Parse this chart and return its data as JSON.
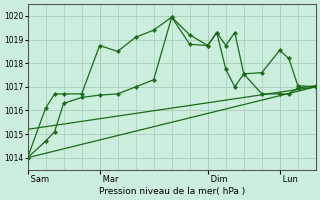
{
  "background_color": "#cceedd",
  "grid_color": "#aaccbb",
  "line_color": "#1a6b1a",
  "xlabel": "Pression niveau de la mer( hPa )",
  "ylim": [
    1013.5,
    1020.5
  ],
  "xlim": [
    0,
    96
  ],
  "yticks": [
    1014,
    1015,
    1016,
    1017,
    1018,
    1019,
    1020
  ],
  "xtick_labels": [
    " Sam",
    " Mar",
    " Dim",
    " Lun"
  ],
  "xtick_positions": [
    0,
    24,
    60,
    84
  ],
  "series1_x": [
    0,
    6,
    9,
    12,
    18,
    24,
    30,
    36,
    42,
    48,
    54,
    60,
    63,
    66,
    69,
    72,
    78,
    84,
    87,
    90,
    96
  ],
  "series1_y": [
    1014.0,
    1016.1,
    1016.7,
    1016.7,
    1016.7,
    1018.75,
    1018.5,
    1019.1,
    1019.4,
    1019.95,
    1018.8,
    1018.75,
    1019.3,
    1018.75,
    1019.3,
    1017.55,
    1017.6,
    1018.55,
    1018.2,
    1017.05,
    1017.0
  ],
  "series2_x": [
    0,
    6,
    9,
    12,
    18,
    24,
    30,
    36,
    42,
    48,
    54,
    60,
    63,
    66,
    69,
    72,
    78,
    84,
    87,
    90,
    96
  ],
  "series2_y": [
    1014.0,
    1014.7,
    1015.1,
    1016.3,
    1016.55,
    1016.65,
    1016.7,
    1017.0,
    1017.3,
    1019.95,
    1019.2,
    1018.75,
    1019.3,
    1017.75,
    1017.0,
    1017.55,
    1016.7,
    1016.7,
    1016.7,
    1016.95,
    1017.05
  ],
  "series3_x": [
    0,
    96
  ],
  "series3_y": [
    1014.0,
    1017.0
  ],
  "series4_x": [
    0,
    96
  ],
  "series4_y": [
    1015.2,
    1017.0
  ]
}
